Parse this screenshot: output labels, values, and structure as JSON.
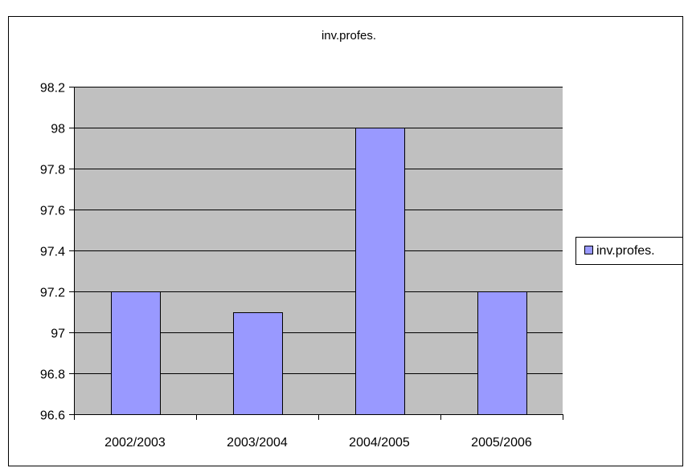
{
  "chart_data": {
    "type": "bar",
    "title": "inv.profes.",
    "categories": [
      "2002/2003",
      "2003/2004",
      "2004/2005",
      "2005/2006"
    ],
    "series": [
      {
        "name": "inv.profes.",
        "values": [
          97.2,
          97.1,
          98.0,
          97.2
        ],
        "color": "#9999ff"
      }
    ],
    "ylim": [
      96.6,
      98.2
    ],
    "yticks": [
      "96.6",
      "96.8",
      "97",
      "97.2",
      "97.4",
      "97.6",
      "97.8",
      "98",
      "98.2"
    ],
    "xlabel": "",
    "ylabel": "",
    "grid": true,
    "legend_position": "right",
    "colors": {
      "plot_background": "#c0c0c0",
      "bar_fill": "#9999ff",
      "gridline": "#000000",
      "border": "#000000"
    }
  }
}
